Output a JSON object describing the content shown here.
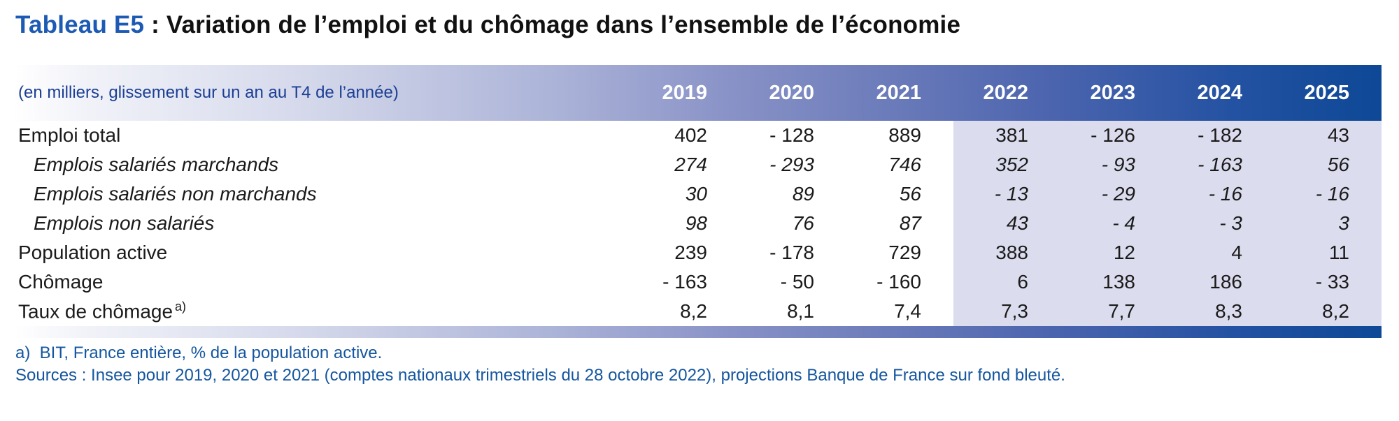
{
  "title": {
    "label": "Tableau E5",
    "rest": " : Variation de l’emploi et du chômage dans l’ensemble de l’économie"
  },
  "colors": {
    "header_gradient_end": "#0d4896",
    "title_blue": "#1d5ab4",
    "note_blue": "#14569f",
    "unit_note_blue": "#1b3f94",
    "projection_background": "#dbddee"
  },
  "table": {
    "unit_note": "(en milliers, glissement sur un an au T4 de l’année)",
    "columns": [
      "2019",
      "2020",
      "2021",
      "2022",
      "2023",
      "2024",
      "2025"
    ],
    "projection_columns": [
      "2022",
      "2023",
      "2024",
      "2025"
    ],
    "rows": [
      {
        "label": "Emploi total",
        "style": "normal",
        "values": [
          "402",
          "- 128",
          "889",
          "381",
          "- 126",
          "- 182",
          "43"
        ]
      },
      {
        "label": "Emplois salariés marchands",
        "style": "italic",
        "values": [
          "274",
          "- 293",
          "746",
          "352",
          "- 93",
          "- 163",
          "56"
        ]
      },
      {
        "label": "Emplois salariés non marchands",
        "style": "italic",
        "values": [
          "30",
          "89",
          "56",
          "- 13",
          "- 29",
          "- 16",
          "- 16"
        ]
      },
      {
        "label": "Emplois non salariés",
        "style": "italic",
        "values": [
          "98",
          "76",
          "87",
          "43",
          "- 4",
          "- 3",
          "3"
        ]
      },
      {
        "label": "Population active",
        "style": "normal",
        "values": [
          "239",
          "- 178",
          "729",
          "388",
          "12",
          "4",
          "11"
        ]
      },
      {
        "label": "Chômage",
        "style": "normal",
        "values": [
          "- 163",
          "- 50",
          "- 160",
          "6",
          "138",
          "186",
          "- 33"
        ]
      },
      {
        "label": "Taux de chômage",
        "label_superscript": "a)",
        "style": "normal",
        "values": [
          "8,2",
          "8,1",
          "7,4",
          "7,3",
          "7,7",
          "8,3",
          "8,2"
        ]
      }
    ]
  },
  "footnotes": {
    "note_a": "a)  BIT, France entière, % de la population active.",
    "sources": "Sources : Insee pour 2019, 2020 et 2021 (comptes nationaux trimestriels du 28 octobre 2022), projections Banque de France sur fond bleuté."
  }
}
